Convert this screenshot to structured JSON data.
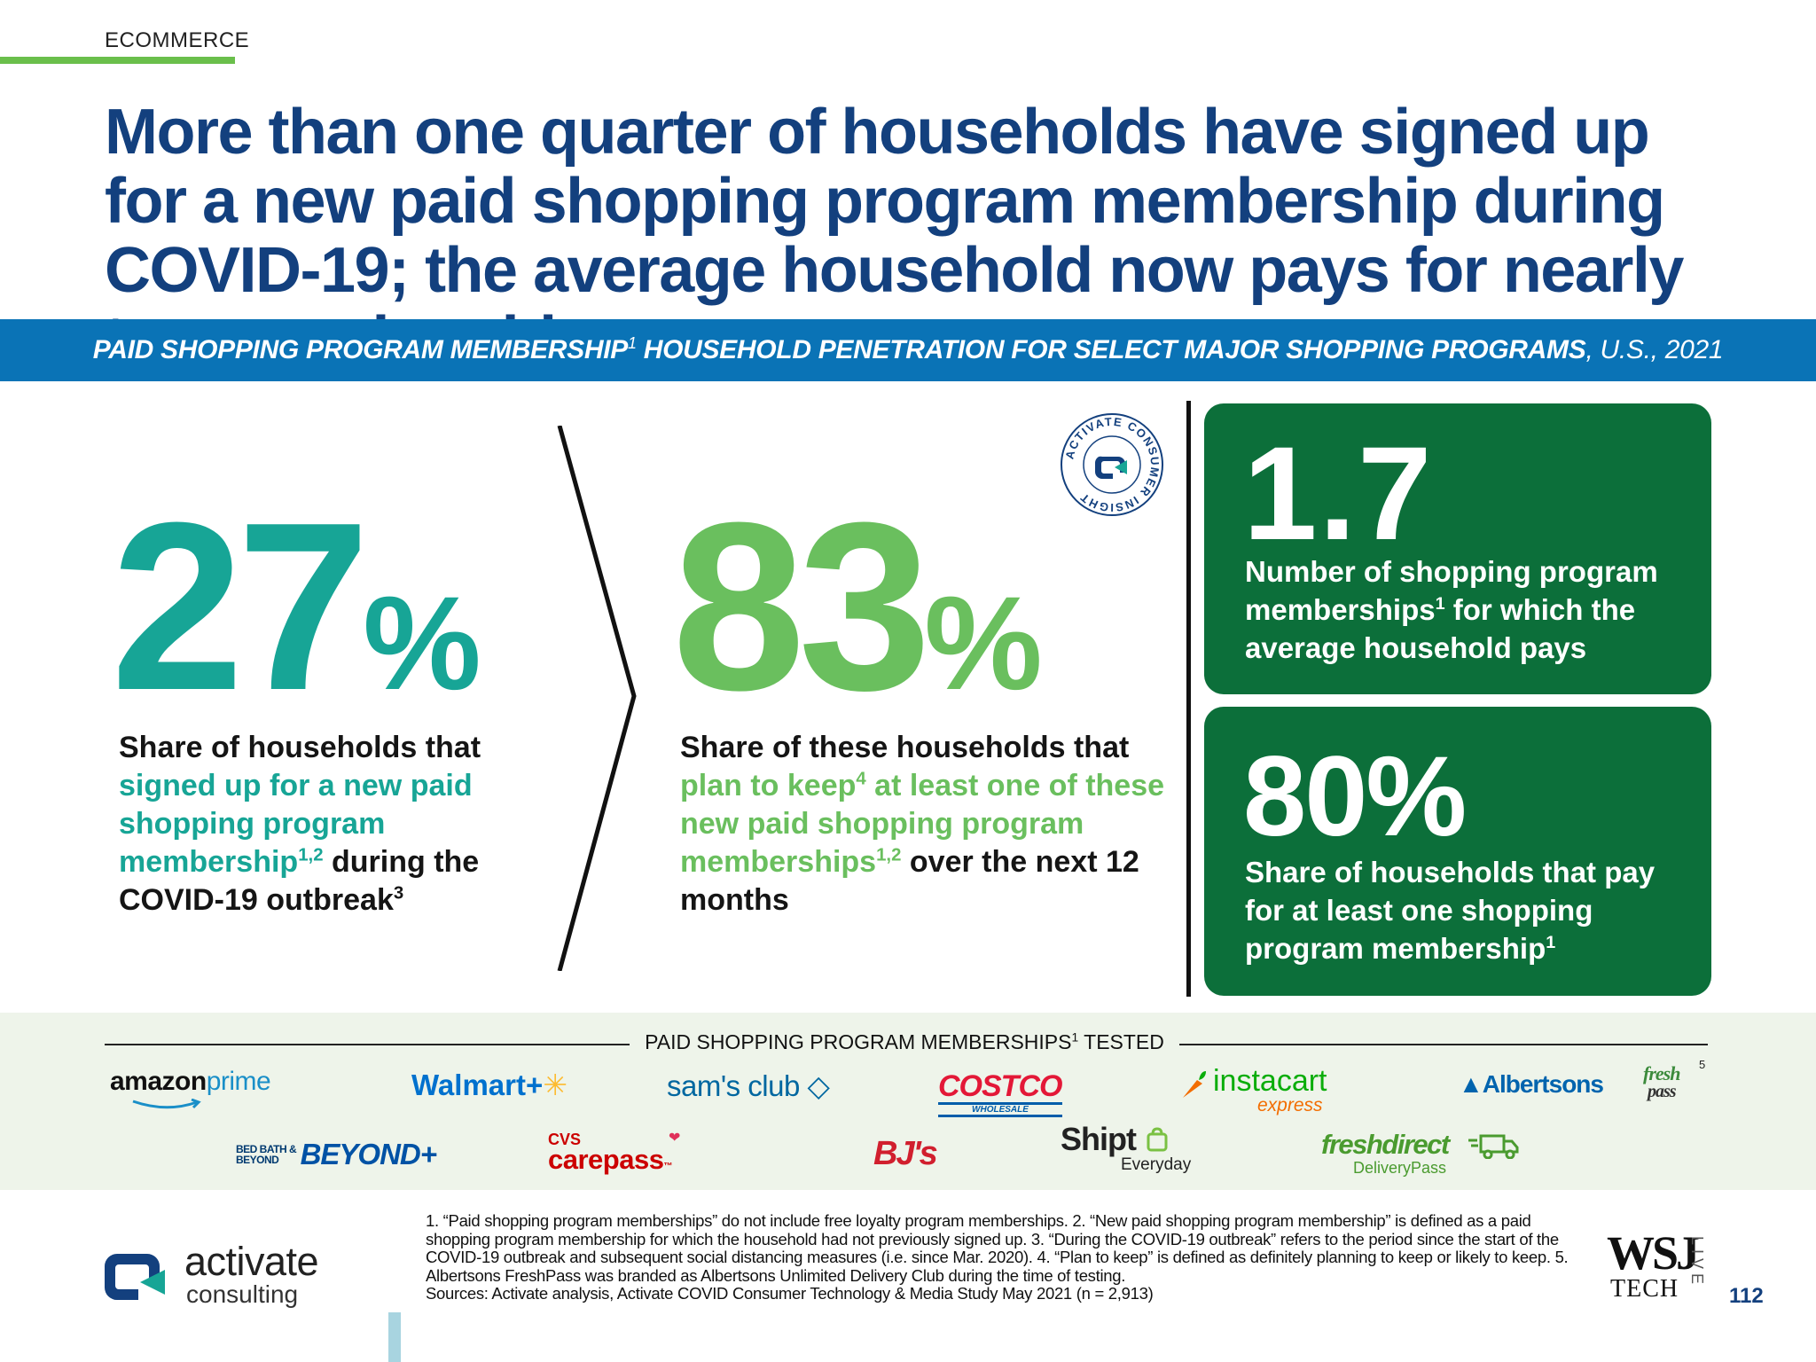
{
  "header": {
    "section_tag": "ECOMMERCE",
    "headline": "More than one quarter of households have signed up for a new paid shopping program membership during COVID-19; the average household now pays for nearly two memberships"
  },
  "banner": {
    "title_bold": "PAID SHOPPING PROGRAM MEMBERSHIP",
    "title_sup": "1",
    "title_bold_2": " HOUSEHOLD PENETRATION FOR SELECT MAJOR SHOPPING PROGRAMS",
    "title_rest": ", U.S., 2021"
  },
  "seal_text": "ACTIVATE CONSUMER INSIGHT",
  "stat_1": {
    "value": "27",
    "unit": "%",
    "text_a": "Share of households that ",
    "text_hl": "signed up for a new paid shopping program membership",
    "text_hl_sup": "1,2",
    "text_b": " during the COVID-19 outbreak",
    "text_b_sup": "3"
  },
  "stat_2": {
    "value": "83",
    "unit": "%",
    "text_a": "Share of these households that ",
    "text_hl_1": "plan to keep",
    "text_hl_sup_1": "4",
    "text_hl_2": " at least one of these new paid shopping program memberships",
    "text_hl_sup_2": "1,2",
    "text_b": " over the next 12 months"
  },
  "card_1": {
    "value": "1.7",
    "text_a": "Number of shopping program memberships",
    "text_sup": "1",
    "text_b": " for which the average household pays"
  },
  "card_2": {
    "value": "80%",
    "text_a": "Share of households that pay for at least one shopping program membership",
    "text_sup": "1"
  },
  "logos": {
    "title": "PAID SHOPPING PROGRAM MEMBERSHIPS",
    "title_sup": "1",
    "title_rest": " TESTED",
    "amazon": {
      "word": "amazon",
      "prime": "prime"
    },
    "walmart": {
      "word": "Walmart",
      "plus": "+"
    },
    "sams": {
      "word": "sam's club"
    },
    "costco": {
      "word": "COSTCO",
      "sub": "WHOLESALE"
    },
    "instacart": {
      "word": "instacart",
      "sub": "express"
    },
    "albertsons": {
      "word": "Albertsons",
      "fresh": "fresh",
      "pass": "pass",
      "footnote": "5"
    },
    "bbb": {
      "small_1": "BED BATH &",
      "small_2": "BEYOND",
      "word": "BEYOND+"
    },
    "cvs": {
      "brand": "CVS",
      "word": "carepass",
      "tm": "™"
    },
    "bjs": {
      "word": "BJ's"
    },
    "shipt": {
      "word": "Shipt",
      "sub": "Everyday"
    },
    "freshdirect": {
      "word": "freshdirect",
      "sub": "DeliveryPass"
    }
  },
  "footer": {
    "activate_word": "activate",
    "activate_sub": "consulting",
    "footnotes": "1. “Paid shopping program memberships” do not include free loyalty program memberships.  2. “New paid shopping program membership” is defined as a paid shopping program membership for which the household had not previously signed up.  3. “During the COVID-19 outbreak” refers to the period since the start of the COVID-19 outbreak and subsequent social distancing measures (i.e. since Mar. 2020).  4. “Plan to keep” is defined as definitely planning to keep or likely to keep.  5. Albertsons FreshPass was branded as Albertsons Unlimited Delivery Club during the time of testing.",
    "sources": "Sources: Activate analysis, Activate COVID Consumer Technology & Media Study May 2021 (n = 2,913)",
    "wsj": "WSJ",
    "tech": "TECH",
    "live": "LIVE",
    "page_number": "112"
  },
  "colors": {
    "headline_navy": "#13407e",
    "banner_blue": "#0a73b6",
    "teal": "#17a596",
    "light_green": "#6abf5e",
    "card_green": "#0c6f3a",
    "logo_band": "#eef4ea"
  },
  "icons": [
    "activate-seal-icon",
    "amazon-smile-icon",
    "instacart-carrot-icon",
    "shipt-bag-icon",
    "freshdirect-truck-icon",
    "activate-mark-icon"
  ]
}
